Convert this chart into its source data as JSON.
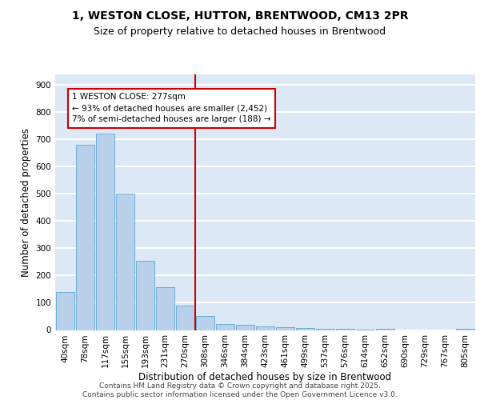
{
  "title_line1": "1, WESTON CLOSE, HUTTON, BRENTWOOD, CM13 2PR",
  "title_line2": "Size of property relative to detached houses in Brentwood",
  "xlabel": "Distribution of detached houses by size in Brentwood",
  "ylabel": "Number of detached properties",
  "categories": [
    "40sqm",
    "78sqm",
    "117sqm",
    "155sqm",
    "193sqm",
    "231sqm",
    "270sqm",
    "308sqm",
    "346sqm",
    "384sqm",
    "423sqm",
    "461sqm",
    "499sqm",
    "537sqm",
    "576sqm",
    "614sqm",
    "652sqm",
    "690sqm",
    "729sqm",
    "767sqm",
    "805sqm"
  ],
  "values": [
    140,
    680,
    720,
    500,
    255,
    158,
    90,
    52,
    22,
    18,
    12,
    10,
    8,
    5,
    4,
    1,
    3,
    0,
    0,
    0,
    5
  ],
  "bar_color": "#b8d0ea",
  "bar_edge_color": "#6baed6",
  "vline_x": 6.5,
  "vline_color": "#cc0000",
  "annotation_text": "1 WESTON CLOSE: 277sqm\n← 93% of detached houses are smaller (2,452)\n7% of semi-detached houses are larger (188) →",
  "annotation_box_color": "#cc0000",
  "ylim": [
    0,
    940
  ],
  "yticks": [
    0,
    100,
    200,
    300,
    400,
    500,
    600,
    700,
    800,
    900
  ],
  "footer_text": "Contains HM Land Registry data © Crown copyright and database right 2025.\nContains public sector information licensed under the Open Government Licence v3.0.",
  "bg_color": "#dce8f5",
  "grid_color": "#ffffff",
  "title_fontsize": 10,
  "subtitle_fontsize": 9,
  "axis_label_fontsize": 8.5,
  "tick_fontsize": 7.5,
  "annotation_fontsize": 7.5,
  "footer_fontsize": 6.5
}
